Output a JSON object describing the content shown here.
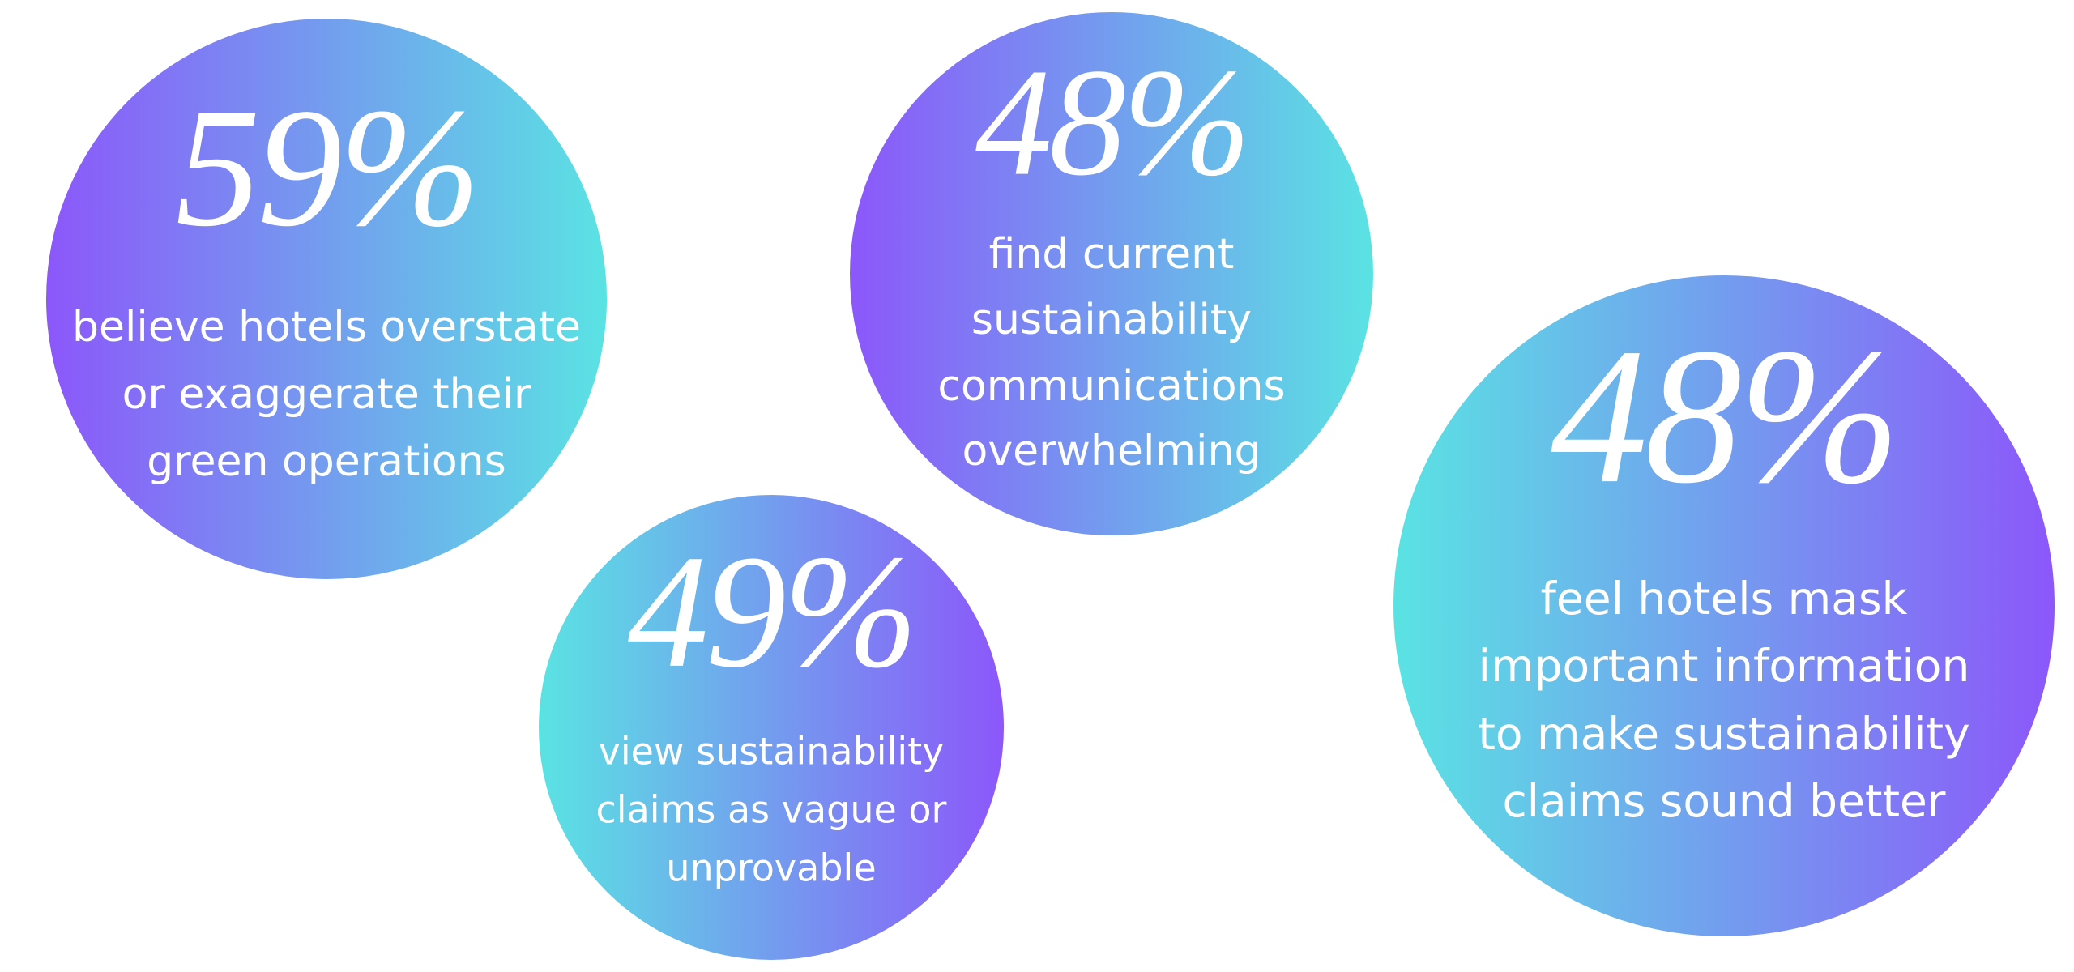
{
  "stats": [
    {
      "figure": "59%",
      "lines": [
        "believe hotels overstate",
        "or exaggerate their",
        "green operations"
      ]
    },
    {
      "figure": "48%",
      "lines": [
        "find current",
        "sustainability",
        "communications",
        "overwhelming"
      ]
    },
    {
      "figure": "49%",
      "lines": [
        "view sustainability",
        "claims as vague or",
        "unprovable"
      ]
    },
    {
      "figure": "48%",
      "lines": [
        "feel hotels mask",
        "important information",
        "to make sustainability",
        "claims sound better"
      ]
    }
  ]
}
